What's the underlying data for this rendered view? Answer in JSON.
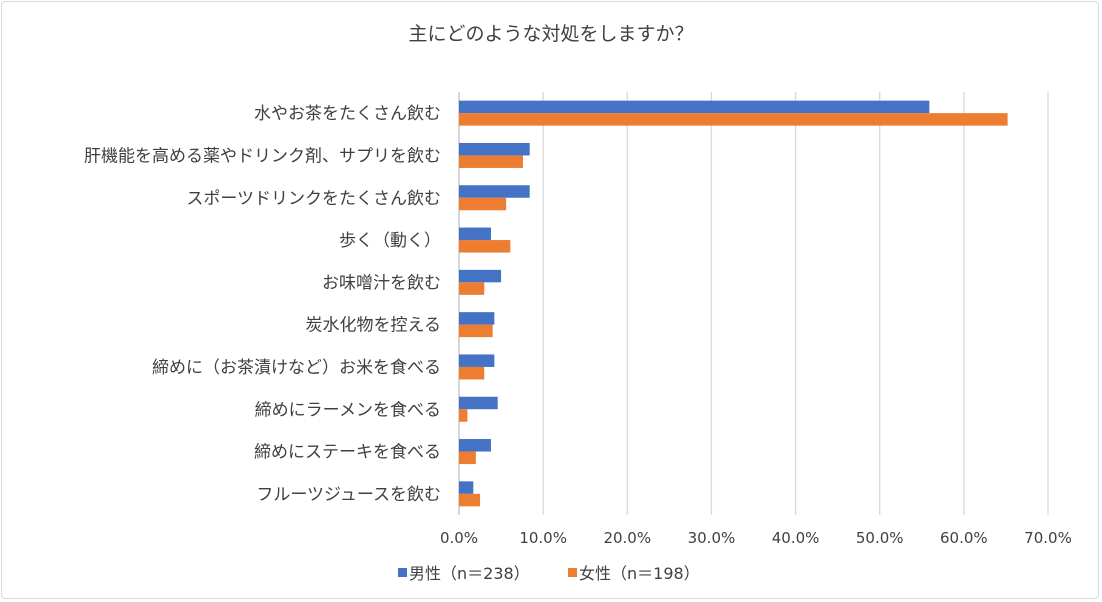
{
  "chart_data": {
    "type": "bar",
    "orientation": "horizontal",
    "title": "主にどのような対処をしますか？",
    "categories": [
      "水やお茶をたくさん飲む",
      "肝機能を高める薬やドリンク剤、サプリを飲む",
      "スポーツドリンクをたくさん飲む",
      "歩く（動く）",
      "お味噌汁を飲む",
      "炭水化物を控える",
      "締めに（お茶漬けなど）お米を食べる",
      "締めにラーメンを食べる",
      "締めにステーキを食べる",
      "フルーツジュースを飲む"
    ],
    "series": [
      {
        "name": "男性（n＝238）",
        "color": "#4472c4",
        "values": [
          55.9,
          8.4,
          8.4,
          3.8,
          5.0,
          4.2,
          4.2,
          4.6,
          3.8,
          1.7
        ]
      },
      {
        "name": "女性（n＝198）",
        "color": "#ed7d31",
        "values": [
          65.2,
          7.6,
          5.6,
          6.1,
          3.0,
          4.0,
          3.0,
          1.0,
          2.0,
          2.5
        ]
      }
    ],
    "xlim": [
      0,
      70
    ],
    "xticks": [
      "0.0%",
      "10.0%",
      "20.0%",
      "30.0%",
      "40.0%",
      "50.0%",
      "60.0%",
      "70.0%"
    ],
    "xlabel": "",
    "ylabel": "",
    "grid": true,
    "legend": "bottom"
  }
}
